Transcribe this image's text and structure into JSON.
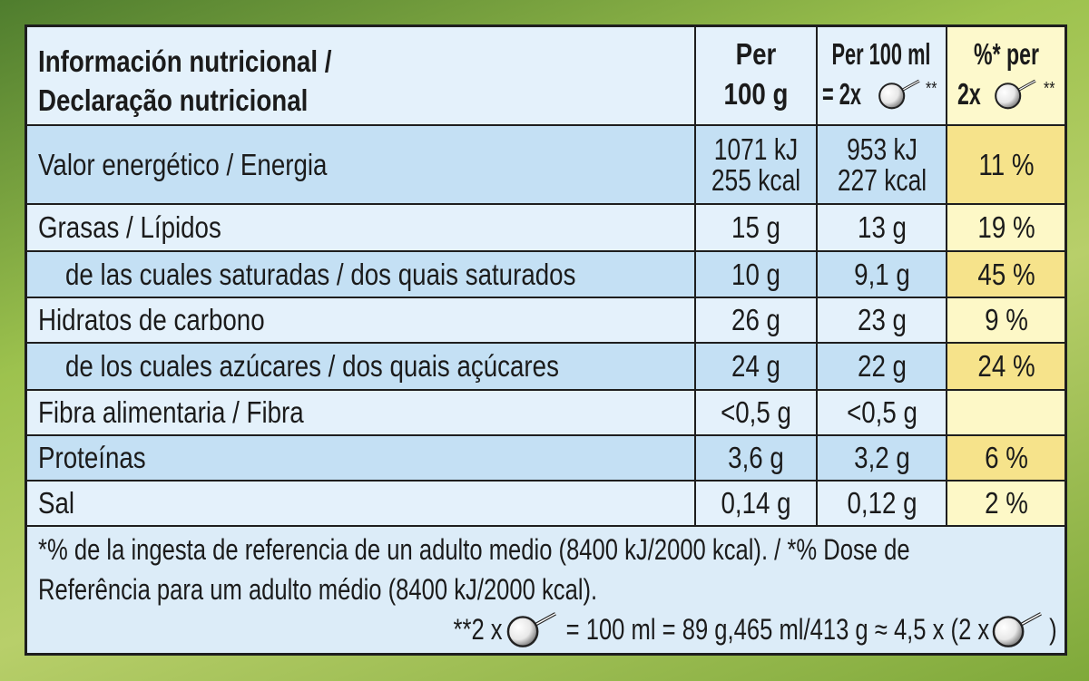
{
  "header": {
    "title_line1": "Información nutricional /",
    "title_line2": "Declaração nutricional",
    "col1_line1": "Per",
    "col1_line2": "100 g",
    "col2_line1": "Per 100 ml",
    "col2_line2_prefix": "= 2x",
    "col2_line2_suffix": "**",
    "col3_line1": "%* per",
    "col3_line2_prefix": "2x",
    "col3_line2_suffix": "**"
  },
  "rows": [
    {
      "label": "Valor energético / Energia",
      "per_100g": [
        "1071 kJ",
        "255 kcal"
      ],
      "per_100ml": [
        "953 kJ",
        "227 kcal"
      ],
      "ri_percent": [
        "11 %"
      ]
    },
    {
      "label": "Grasas / Lípidos",
      "per_100g": [
        "15 g"
      ],
      "per_100ml": [
        "13 g"
      ],
      "ri_percent": [
        "19 %"
      ]
    },
    {
      "label": "de las cuales saturadas / dos quais saturados",
      "indent": true,
      "per_100g": [
        "10 g"
      ],
      "per_100ml": [
        "9,1 g"
      ],
      "ri_percent": [
        "45 %"
      ]
    },
    {
      "label": "Hidratos de carbono",
      "per_100g": [
        "26 g"
      ],
      "per_100ml": [
        "23 g"
      ],
      "ri_percent": [
        "9 %"
      ]
    },
    {
      "label": "de los cuales azúcares / dos quais açúcares",
      "indent": true,
      "per_100g": [
        "24 g"
      ],
      "per_100ml": [
        "22 g"
      ],
      "ri_percent": [
        "24 %"
      ]
    },
    {
      "label": "Fibra alimentaria / Fibra",
      "per_100g": [
        "<0,5 g"
      ],
      "per_100ml": [
        "<0,5 g"
      ]
    },
    {
      "label": "Proteínas",
      "per_100g": [
        "3,6 g"
      ],
      "per_100ml": [
        "3,2 g"
      ],
      "ri_percent": [
        "6 %"
      ]
    },
    {
      "label": "Sal",
      "per_100g": [
        "0,14 g"
      ],
      "per_100ml": [
        "0,12 g"
      ],
      "ri_percent": [
        "2 %"
      ]
    }
  ],
  "footnote": {
    "line1": "*% de la ingesta de referencia de un adulto medio (8400 kJ/2000 kcal). / *% Dose de",
    "line2": "Referência para um adulto médio (8400 kJ/2000 kcal).",
    "line3_part1": "**2 x",
    "line3_part2": "= 100 ml = 89 g,465 ml/413 g ≈ 4,5 x (2 x",
    "line3_part3": ")"
  }
}
